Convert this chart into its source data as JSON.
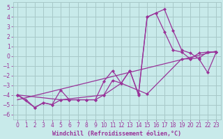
{
  "title": "",
  "xlabel": "Windchill (Refroidissement éolien,°C)",
  "ylabel": "",
  "bg_color": "#c8eaea",
  "grid_color": "#a8c8c8",
  "line_color": "#993399",
  "xlim": [
    -0.5,
    23.5
  ],
  "ylim": [
    -6.5,
    5.5
  ],
  "xticks": [
    0,
    1,
    2,
    3,
    4,
    5,
    6,
    7,
    8,
    9,
    10,
    11,
    12,
    13,
    14,
    15,
    16,
    17,
    18,
    19,
    20,
    21,
    22,
    23
  ],
  "yticks": [
    -6,
    -5,
    -4,
    -3,
    -2,
    -1,
    0,
    1,
    2,
    3,
    4,
    5
  ],
  "series1_x": [
    0,
    1,
    2,
    3,
    4,
    5,
    6,
    7,
    8,
    9,
    10,
    11,
    12,
    13,
    14,
    15,
    16,
    17,
    18,
    19,
    20,
    21,
    22,
    23
  ],
  "series1_y": [
    -4.0,
    -4.5,
    -5.3,
    -4.8,
    -5.0,
    -4.5,
    -4.5,
    -4.5,
    -4.5,
    -4.5,
    -4.0,
    -2.5,
    -2.8,
    -1.5,
    -4.0,
    4.0,
    4.4,
    4.8,
    2.6,
    0.6,
    0.3,
    -0.3,
    -1.7,
    0.4
  ],
  "series2_x": [
    0,
    2,
    3,
    4,
    5,
    6,
    7,
    8,
    9,
    10,
    11,
    12,
    13,
    14,
    15,
    16,
    17,
    18,
    19,
    20,
    21,
    22,
    23
  ],
  "series2_y": [
    -4.0,
    -5.3,
    -4.8,
    -5.0,
    -3.5,
    -4.5,
    -4.5,
    -4.5,
    -4.5,
    -2.6,
    -1.5,
    -2.8,
    -1.5,
    -3.9,
    4.0,
    4.4,
    2.5,
    0.6,
    0.4,
    -0.3,
    -0.2,
    0.4,
    0.4
  ],
  "series3_x": [
    0,
    23
  ],
  "series3_y": [
    -4.5,
    0.5
  ],
  "series4_x": [
    0,
    5,
    10,
    12,
    15,
    19,
    20,
    21,
    22,
    23
  ],
  "series4_y": [
    -4.0,
    -4.5,
    -4.0,
    -2.8,
    -3.9,
    -0.3,
    -0.3,
    0.3,
    0.4,
    0.4
  ]
}
